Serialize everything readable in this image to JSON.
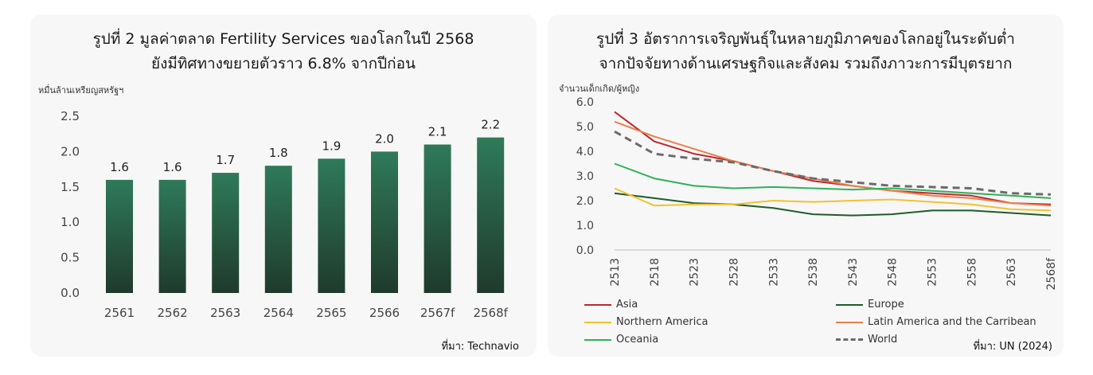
{
  "left": {
    "title_line1": "รูปที่ 2 มูลค่าตลาด Fertility Services ของโลกในปี 2568",
    "title_line2": "ยังมีทิศทางขยายตัวราว 6.8% จากปีก่อน",
    "unit": "หมื่นล้านเหรียญสหรัฐฯ",
    "source": "ที่มา: Technavio"
  },
  "right": {
    "title_line1": "รูปที่ 3 อัตราการเจริญพันธุ์ในหลายภูมิภาคของโลกอยู่ในระดับต่ำ",
    "title_line2": "จากปัจจัยทางด้านเศรษฐกิจและสังคม รวมถึงภาวะการมีบุตรยาก",
    "unit": "จำนวนเด็กเกิด/ผู้หญิง",
    "source": "ที่มา: UN (2024)"
  },
  "chart_data": [
    {
      "type": "bar",
      "categories": [
        "2561",
        "2562",
        "2563",
        "2564",
        "2565",
        "2566",
        "2567f",
        "2568f"
      ],
      "values": [
        1.6,
        1.6,
        1.7,
        1.8,
        1.9,
        2.0,
        2.1,
        2.2
      ],
      "value_labels": [
        "1.6",
        "1.6",
        "1.7",
        "1.8",
        "1.9",
        "2.0",
        "2.1",
        "2.2"
      ],
      "ylim": [
        0,
        2.5
      ],
      "yticks": [
        "0.0",
        "0.5",
        "1.0",
        "1.5",
        "2.0",
        "2.5"
      ],
      "grid": false,
      "color_top": "#2f7a5a",
      "color_bottom": "#1f3a2c"
    },
    {
      "type": "line",
      "x": [
        2513,
        2518,
        2523,
        2528,
        2533,
        2538,
        2543,
        2548,
        2553,
        2558,
        2563,
        2568
      ],
      "xticks": [
        "2513",
        "2518",
        "2523",
        "2528",
        "2533",
        "2538",
        "2543",
        "2548",
        "2553",
        "2558",
        "2563",
        "2568f"
      ],
      "ylim": [
        0,
        6
      ],
      "yticks": [
        "0.0",
        "1.0",
        "2.0",
        "3.0",
        "4.0",
        "5.0",
        "6.0"
      ],
      "grid": false,
      "legend_position": "bottom",
      "series": [
        {
          "name": "Asia",
          "color": "#c0262d",
          "dash": false,
          "values": [
            5.6,
            4.4,
            3.9,
            3.6,
            3.2,
            2.8,
            2.6,
            2.4,
            2.3,
            2.2,
            1.9,
            1.85
          ]
        },
        {
          "name": "Europe",
          "color": "#1f5c2a",
          "dash": false,
          "values": [
            2.3,
            2.1,
            1.9,
            1.85,
            1.7,
            1.45,
            1.4,
            1.45,
            1.6,
            1.6,
            1.5,
            1.4
          ]
        },
        {
          "name": "Northern America",
          "color": "#f2c230",
          "dash": false,
          "values": [
            2.5,
            1.8,
            1.85,
            1.85,
            2.0,
            1.95,
            2.0,
            2.05,
            1.95,
            1.85,
            1.65,
            1.6
          ]
        },
        {
          "name": "Latin America and the Carribean",
          "color": "#e8804a",
          "dash": false,
          "values": [
            5.2,
            4.6,
            4.1,
            3.6,
            3.2,
            2.9,
            2.6,
            2.4,
            2.2,
            2.1,
            1.9,
            1.8
          ]
        },
        {
          "name": "Oceania",
          "color": "#2fb15a",
          "dash": false,
          "values": [
            3.5,
            2.9,
            2.6,
            2.5,
            2.55,
            2.5,
            2.45,
            2.5,
            2.4,
            2.3,
            2.2,
            2.1
          ]
        },
        {
          "name": "World",
          "color": "#6b6b6b",
          "dash": true,
          "values": [
            4.8,
            3.9,
            3.7,
            3.55,
            3.2,
            2.9,
            2.75,
            2.6,
            2.55,
            2.5,
            2.3,
            2.25
          ]
        }
      ]
    }
  ]
}
